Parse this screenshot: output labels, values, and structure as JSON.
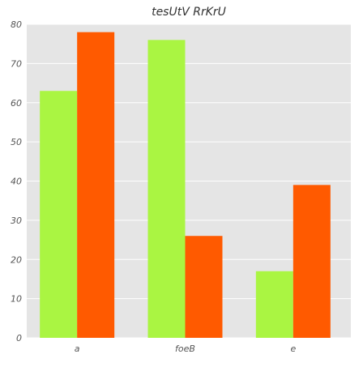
{
  "chart_data": {
    "type": "bar",
    "title": "tesUtV RrKrU",
    "xlabel": "",
    "ylabel": "",
    "categories": [
      "a",
      "foeB",
      "e"
    ],
    "series": [
      {
        "values": [
          63,
          76,
          17
        ],
        "color": "#aaf542"
      },
      {
        "values": [
          78,
          26,
          39
        ],
        "color": "#ff5a00"
      }
    ],
    "ylim": [
      0,
      80
    ],
    "yticks": [
      0,
      10,
      20,
      30,
      40,
      50,
      60,
      70,
      80
    ],
    "grid": true,
    "background": "#e5e5e5",
    "grid_color": "#ffffff"
  }
}
